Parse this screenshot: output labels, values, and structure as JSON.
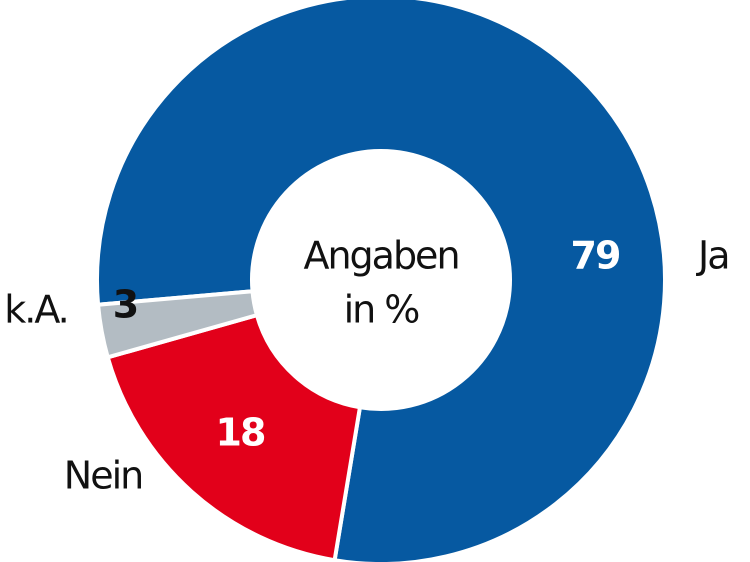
{
  "chart_data": {
    "type": "donut",
    "categories": [
      "Ja",
      "Nein",
      "k.A."
    ],
    "values": [
      79,
      18,
      3
    ],
    "colors": [
      "#0659a1",
      "#e2001a",
      "#b3bcc3"
    ],
    "center_label": [
      "Angaben",
      "in %"
    ]
  }
}
